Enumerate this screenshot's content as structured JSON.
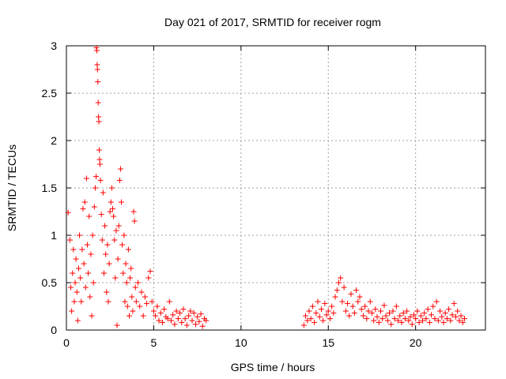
{
  "chart_data": {
    "type": "scatter",
    "title": "Day 021 of 2017, SRMTID for receiver rogm",
    "xlabel": "GPS time / hours",
    "ylabel": "SRMTID / TECUs",
    "xlim": [
      0,
      24
    ],
    "ylim": [
      0,
      3
    ],
    "xticks": [
      0,
      5,
      10,
      15,
      20
    ],
    "yticks": [
      0,
      0.5,
      1,
      1.5,
      2,
      2.5,
      3
    ],
    "xtick_labels": [
      "0",
      "5",
      "10",
      "15",
      "20"
    ],
    "ytick_labels": [
      "0",
      "0.5",
      "1",
      "1.5",
      "2",
      "2.5",
      "3"
    ],
    "grid": true,
    "marker": "+",
    "series": [
      {
        "name": "SRMTID",
        "color": "#ff0000",
        "points": [
          [
            0.1,
            1.24
          ],
          [
            0.2,
            0.95
          ],
          [
            0.25,
            0.45
          ],
          [
            0.3,
            0.2
          ],
          [
            0.35,
            0.6
          ],
          [
            0.4,
            0.85
          ],
          [
            0.45,
            0.3
          ],
          [
            0.5,
            0.5
          ],
          [
            0.55,
            0.75
          ],
          [
            0.6,
            0.4
          ],
          [
            0.65,
            0.1
          ],
          [
            0.7,
            0.65
          ],
          [
            0.75,
            1.0
          ],
          [
            0.8,
            0.55
          ],
          [
            0.85,
            0.3
          ],
          [
            0.9,
            0.85
          ],
          [
            0.95,
            1.28
          ],
          [
            1.0,
            0.7
          ],
          [
            1.05,
            1.35
          ],
          [
            1.1,
            0.45
          ],
          [
            1.15,
            1.6
          ],
          [
            1.2,
            0.9
          ],
          [
            1.25,
            0.6
          ],
          [
            1.3,
            1.2
          ],
          [
            1.35,
            0.35
          ],
          [
            1.4,
            0.8
          ],
          [
            1.45,
            0.15
          ],
          [
            1.5,
            1.0
          ],
          [
            1.55,
            0.5
          ],
          [
            1.6,
            1.3
          ],
          [
            1.65,
            1.5
          ],
          [
            1.7,
            1.62
          ],
          [
            1.72,
            2.98
          ],
          [
            1.74,
            2.95
          ],
          [
            1.76,
            2.8
          ],
          [
            1.78,
            2.75
          ],
          [
            1.8,
            2.62
          ],
          [
            1.82,
            2.4
          ],
          [
            1.84,
            2.25
          ],
          [
            1.86,
            2.2
          ],
          [
            1.88,
            1.9
          ],
          [
            1.9,
            1.8
          ],
          [
            1.92,
            1.75
          ],
          [
            1.95,
            1.58
          ],
          [
            2.0,
            1.22
          ],
          [
            2.05,
            0.95
          ],
          [
            2.1,
            1.45
          ],
          [
            2.15,
            0.6
          ],
          [
            2.2,
            1.1
          ],
          [
            2.25,
            0.8
          ],
          [
            2.3,
            0.4
          ],
          [
            2.35,
            0.9
          ],
          [
            2.4,
            0.3
          ],
          [
            2.45,
            0.7
          ],
          [
            2.5,
            1.25
          ],
          [
            2.55,
            1.35
          ],
          [
            2.6,
            1.5
          ],
          [
            2.65,
            1.28
          ],
          [
            2.7,
            1.2
          ],
          [
            2.75,
            0.95
          ],
          [
            2.8,
            0.55
          ],
          [
            2.85,
            1.05
          ],
          [
            2.9,
            0.05
          ],
          [
            2.95,
            0.75
          ],
          [
            3.0,
            1.1
          ],
          [
            3.05,
            1.58
          ],
          [
            3.1,
            1.7
          ],
          [
            3.15,
            1.35
          ],
          [
            3.2,
            0.9
          ],
          [
            3.25,
            0.6
          ],
          [
            3.3,
            1.0
          ],
          [
            3.35,
            0.3
          ],
          [
            3.4,
            0.7
          ],
          [
            3.45,
            0.5
          ],
          [
            3.5,
            0.25
          ],
          [
            3.55,
            0.85
          ],
          [
            3.6,
            0.15
          ],
          [
            3.65,
            0.55
          ],
          [
            3.7,
            0.65
          ],
          [
            3.75,
            0.35
          ],
          [
            3.8,
            0.2
          ],
          [
            3.85,
            1.25
          ],
          [
            3.9,
            1.15
          ],
          [
            3.95,
            0.45
          ],
          [
            4.0,
            0.3
          ],
          [
            4.1,
            0.5
          ],
          [
            4.2,
            0.25
          ],
          [
            4.3,
            0.4
          ],
          [
            4.4,
            0.15
          ],
          [
            4.5,
            0.35
          ],
          [
            4.6,
            0.28
          ],
          [
            4.7,
            0.55
          ],
          [
            4.8,
            0.62
          ],
          [
            4.9,
            0.3
          ],
          [
            5.0,
            0.2
          ],
          [
            5.1,
            0.15
          ],
          [
            5.2,
            0.25
          ],
          [
            5.3,
            0.1
          ],
          [
            5.4,
            0.18
          ],
          [
            5.5,
            0.08
          ],
          [
            5.6,
            0.22
          ],
          [
            5.7,
            0.14
          ],
          [
            5.8,
            0.12
          ],
          [
            5.9,
            0.3
          ],
          [
            6.0,
            0.1
          ],
          [
            6.1,
            0.16
          ],
          [
            6.2,
            0.06
          ],
          [
            6.3,
            0.2
          ],
          [
            6.4,
            0.12
          ],
          [
            6.5,
            0.18
          ],
          [
            6.6,
            0.08
          ],
          [
            6.7,
            0.22
          ],
          [
            6.8,
            0.12
          ],
          [
            6.9,
            0.05
          ],
          [
            7.0,
            0.15
          ],
          [
            7.1,
            0.2
          ],
          [
            7.2,
            0.1
          ],
          [
            7.3,
            0.18
          ],
          [
            7.4,
            0.06
          ],
          [
            7.5,
            0.14
          ],
          [
            7.6,
            0.09
          ],
          [
            7.7,
            0.17
          ],
          [
            7.8,
            0.04
          ],
          [
            7.9,
            0.12
          ],
          [
            8.0,
            0.1
          ],
          [
            13.6,
            0.05
          ],
          [
            13.7,
            0.15
          ],
          [
            13.8,
            0.1
          ],
          [
            13.9,
            0.2
          ],
          [
            14.0,
            0.12
          ],
          [
            14.1,
            0.25
          ],
          [
            14.2,
            0.08
          ],
          [
            14.3,
            0.18
          ],
          [
            14.4,
            0.3
          ],
          [
            14.5,
            0.14
          ],
          [
            14.6,
            0.22
          ],
          [
            14.7,
            0.1
          ],
          [
            14.8,
            0.28
          ],
          [
            14.9,
            0.16
          ],
          [
            15.0,
            0.2
          ],
          [
            15.1,
            0.12
          ],
          [
            15.2,
            0.25
          ],
          [
            15.3,
            0.18
          ],
          [
            15.4,
            0.35
          ],
          [
            15.5,
            0.42
          ],
          [
            15.6,
            0.5
          ],
          [
            15.7,
            0.55
          ],
          [
            15.8,
            0.3
          ],
          [
            15.9,
            0.45
          ],
          [
            16.0,
            0.2
          ],
          [
            16.1,
            0.28
          ],
          [
            16.2,
            0.15
          ],
          [
            16.3,
            0.38
          ],
          [
            16.4,
            0.25
          ],
          [
            16.5,
            0.18
          ],
          [
            16.6,
            0.42
          ],
          [
            16.7,
            0.3
          ],
          [
            16.8,
            0.35
          ],
          [
            16.9,
            0.22
          ],
          [
            17.0,
            0.15
          ],
          [
            17.1,
            0.25
          ],
          [
            17.2,
            0.12
          ],
          [
            17.3,
            0.2
          ],
          [
            17.4,
            0.3
          ],
          [
            17.5,
            0.18
          ],
          [
            17.6,
            0.1
          ],
          [
            17.7,
            0.22
          ],
          [
            17.8,
            0.14
          ],
          [
            17.9,
            0.08
          ],
          [
            18.0,
            0.2
          ],
          [
            18.1,
            0.12
          ],
          [
            18.2,
            0.26
          ],
          [
            18.3,
            0.15
          ],
          [
            18.4,
            0.1
          ],
          [
            18.5,
            0.18
          ],
          [
            18.6,
            0.06
          ],
          [
            18.7,
            0.2
          ],
          [
            18.8,
            0.12
          ],
          [
            18.9,
            0.25
          ],
          [
            19.0,
            0.1
          ],
          [
            19.1,
            0.15
          ],
          [
            19.2,
            0.08
          ],
          [
            19.3,
            0.18
          ],
          [
            19.4,
            0.12
          ],
          [
            19.5,
            0.2
          ],
          [
            19.6,
            0.1
          ],
          [
            19.7,
            0.14
          ],
          [
            19.8,
            0.06
          ],
          [
            19.9,
            0.16
          ],
          [
            20.0,
            0.12
          ],
          [
            20.1,
            0.2
          ],
          [
            20.2,
            0.08
          ],
          [
            20.3,
            0.15
          ],
          [
            20.4,
            0.1
          ],
          [
            20.5,
            0.18
          ],
          [
            20.6,
            0.12
          ],
          [
            20.7,
            0.22
          ],
          [
            20.8,
            0.08
          ],
          [
            20.9,
            0.16
          ],
          [
            21.0,
            0.25
          ],
          [
            21.1,
            0.12
          ],
          [
            21.2,
            0.3
          ],
          [
            21.3,
            0.1
          ],
          [
            21.4,
            0.2
          ],
          [
            21.5,
            0.14
          ],
          [
            21.6,
            0.08
          ],
          [
            21.7,
            0.18
          ],
          [
            21.8,
            0.12
          ],
          [
            21.9,
            0.22
          ],
          [
            22.0,
            0.1
          ],
          [
            22.1,
            0.16
          ],
          [
            22.2,
            0.28
          ],
          [
            22.3,
            0.14
          ],
          [
            22.4,
            0.2
          ],
          [
            22.5,
            0.1
          ],
          [
            22.6,
            0.15
          ],
          [
            22.7,
            0.08
          ],
          [
            22.8,
            0.12
          ]
        ]
      }
    ]
  }
}
